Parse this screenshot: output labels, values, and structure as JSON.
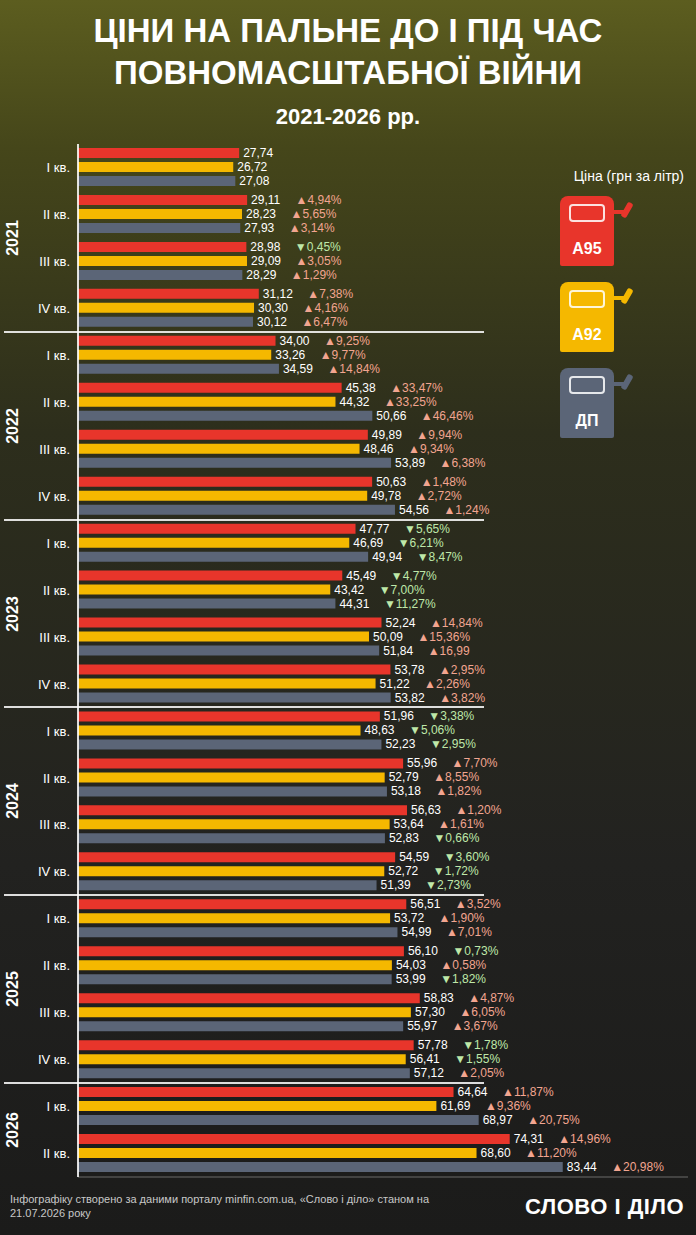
{
  "chart_data": {
    "type": "bar",
    "orientation": "horizontal",
    "title": "ЦІНИ НА ПАЛЬНЕ ДО І ПІД ЧАС ПОВНОМАСШТАБНОЇ ВІЙНИ",
    "subtitle": "2021-2026 рр.",
    "legend_title": "Ціна (грн за літр)",
    "legend": "upper right",
    "data_labels": true,
    "tick_labels": "y",
    "grid": false,
    "xlim": [
      0,
      105
    ],
    "xticks": [],
    "groups": [
      {
        "name": "2021",
        "categories": [
          "I кв.",
          "II кв.",
          "III кв.",
          "IV кв."
        ]
      },
      {
        "name": "2022",
        "categories": [
          "I кв.",
          "II кв.",
          "III кв.",
          "IV кв."
        ]
      },
      {
        "name": "2023",
        "categories": [
          "I кв.",
          "II кв.",
          "III кв.",
          "IV кв."
        ]
      },
      {
        "name": "2024",
        "categories": [
          "I кв.",
          "II кв.",
          "III кв.",
          "IV кв."
        ]
      },
      {
        "name": "2025",
        "categories": [
          "I кв.",
          "II кв.",
          "III кв.",
          "IV кв."
        ]
      },
      {
        "name": "2026",
        "categories": [
          "I кв.",
          "II кв."
        ]
      }
    ],
    "series": [
      {
        "name": "A95",
        "color": "#e8352b",
        "values": [
          27.74,
          29.11,
          28.98,
          31.12,
          34,
          45.38,
          49.89,
          50.63,
          47.77,
          45.49,
          52.24,
          53.78,
          51.96,
          55.96,
          56.63,
          54.59,
          56.51,
          56.1,
          58.83,
          57.78,
          64.64,
          74.31
        ],
        "value_labels": [
          "27,74",
          "29,11",
          "28,98",
          "31,12",
          "34,00",
          "45,38",
          "49,89",
          "50,63",
          "47,77",
          "45,49",
          "52,24",
          "53,78",
          "51,96",
          "55,96",
          "56,63",
          "54,59",
          "56,51",
          "56,10",
          "58,83",
          "57,78",
          "64,64",
          "74,31"
        ],
        "changes": [
          null,
          4.94,
          -0.45,
          7.38,
          9.25,
          33.47,
          9.94,
          1.48,
          -5.65,
          -4.77,
          14.84,
          2.95,
          -3.38,
          7.7,
          1.2,
          -3.6,
          3.52,
          -0.73,
          4.87,
          -1.78,
          11.87,
          14.96
        ],
        "change_labels": [
          null,
          "▲4,94%",
          "▼0,45%",
          "▲7,38%",
          "▲9,25%",
          "▲33,47%",
          "▲9,94%",
          "▲1,48%",
          "▼5,65%",
          "▼4,77%",
          "▲14,84%",
          "▲2,95%",
          "▼3,38%",
          "▲7,70%",
          "▲1,20%",
          "▼3,60%",
          "▲3,52%",
          "▼0,73%",
          "▲4,87%",
          "▼1,78%",
          "▲11,87%",
          "▲14,96%"
        ]
      },
      {
        "name": "A92",
        "color": "#f5b800",
        "values": [
          26.72,
          28.23,
          29.09,
          30.3,
          33.26,
          44.32,
          48.46,
          49.78,
          46.69,
          43.42,
          50.09,
          51.22,
          48.63,
          52.79,
          53.64,
          52.72,
          53.72,
          54.03,
          57.3,
          56.41,
          61.69,
          68.6
        ],
        "value_labels": [
          "26,72",
          "28,23",
          "29,09",
          "30,30",
          "33,26",
          "44,32",
          "48,46",
          "49,78",
          "46,69",
          "43,42",
          "50,09",
          "51,22",
          "48,63",
          "52,79",
          "53,64",
          "52,72",
          "53,72",
          "54,03",
          "57,30",
          "56,41",
          "61,69",
          "68,60"
        ],
        "changes": [
          null,
          5.65,
          3.05,
          4.16,
          9.77,
          33.25,
          9.34,
          2.72,
          -6.21,
          -7.0,
          15.36,
          2.26,
          -5.06,
          8.55,
          1.61,
          -1.72,
          1.9,
          0.58,
          6.05,
          -1.55,
          9.36,
          11.2
        ],
        "change_labels": [
          null,
          "▲5,65%",
          "▲3,05%",
          "▲4,16%",
          "▲9,77%",
          "▲33,25%",
          "▲9,34%",
          "▲2,72%",
          "▼6,21%",
          "▼7,00%",
          "▲15,36%",
          "▲2,26%",
          "▼5,06%",
          "▲8,55%",
          "▲1,61%",
          "▼1,72%",
          "▲1,90%",
          "▲0,58%",
          "▲6,05%",
          "▼1,55%",
          "▲9,36%",
          "▲11,20%"
        ]
      },
      {
        "name": "ДП",
        "color": "#5b6577",
        "values": [
          27.08,
          27.93,
          28.29,
          30.12,
          34.59,
          50.66,
          53.89,
          54.56,
          49.94,
          44.31,
          51.84,
          53.82,
          52.23,
          53.18,
          52.83,
          51.39,
          54.99,
          53.99,
          55.97,
          57.12,
          68.97,
          83.44
        ],
        "value_labels": [
          "27,08",
          "27,93",
          "28,29",
          "30,12",
          "34,59",
          "50,66",
          "53,89",
          "54,56",
          "49,94",
          "44,31",
          "51,84",
          "53,82",
          "52,23",
          "53,18",
          "52,83",
          "51,39",
          "54,99",
          "53,99",
          "55,97",
          "57,12",
          "68,97",
          "83,44"
        ],
        "changes": [
          null,
          3.14,
          1.29,
          6.47,
          14.84,
          46.46,
          6.38,
          1.24,
          -8.47,
          -11.27,
          16.99,
          3.82,
          -2.95,
          1.82,
          -0.66,
          -2.73,
          7.01,
          -1.82,
          3.67,
          2.05,
          20.75,
          20.98
        ],
        "change_labels": [
          null,
          "▲3,14%",
          "▲1,29%",
          "▲6,47%",
          "▲14,84%",
          "▲46,46%",
          "▲6,38%",
          "▲1,24%",
          "▼8,47%",
          "▼11,27%",
          "▲16,99",
          "▲3,82%",
          "▼2,95%",
          "▲1,82%",
          "▼0,66%",
          "▼2,73%",
          "▲7,01%",
          "▼1,82%",
          "▲3,67%",
          "▲2,05%",
          "▲20,75%",
          "▲20,98%"
        ]
      }
    ],
    "source": "Інфографіку створено за даними порталу minfin.com.ua, «Слово і діло» станом на 21.07.2026 року",
    "logo": "СЛОВО І ДІЛО"
  }
}
